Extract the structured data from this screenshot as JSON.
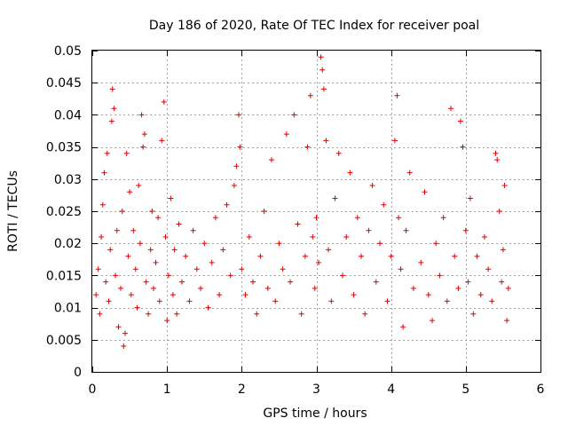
{
  "chart_data": {
    "type": "scatter",
    "title": "Day 186 of 2020, Rate Of TEC Index for receiver poal",
    "xlabel": "GPS time / hours",
    "ylabel": "ROTI / TECUs",
    "xlim": [
      0,
      6
    ],
    "ylim": [
      0,
      0.05
    ],
    "x_ticks": [
      0,
      1,
      2,
      3,
      4,
      5,
      6
    ],
    "x_tick_labels": [
      "0",
      "1",
      "2",
      "3",
      "4",
      "5",
      "6"
    ],
    "y_ticks": [
      0,
      0.005,
      0.01,
      0.015,
      0.02,
      0.025,
      0.03,
      0.035,
      0.04,
      0.045,
      0.05
    ],
    "y_tick_labels": [
      "0",
      "0.005",
      "0.01",
      "0.015",
      "0.02",
      "0.025",
      "0.03",
      "0.035",
      "0.04",
      "0.045",
      "0.05"
    ],
    "grid": true,
    "marker": "+",
    "marker_color": "#e00000",
    "series": [
      {
        "name": "ROTI",
        "points": [
          [
            0.05,
            0.012
          ],
          [
            0.08,
            0.016
          ],
          [
            0.1,
            0.009
          ],
          [
            0.12,
            0.021
          ],
          [
            0.14,
            0.026
          ],
          [
            0.16,
            0.031
          ],
          [
            0.18,
            0.014
          ],
          [
            0.2,
            0.034
          ],
          [
            0.22,
            0.011
          ],
          [
            0.24,
            0.019
          ],
          [
            0.26,
            0.039
          ],
          [
            0.27,
            0.044
          ],
          [
            0.29,
            0.041
          ],
          [
            0.31,
            0.015
          ],
          [
            0.33,
            0.022
          ],
          [
            0.35,
            0.007
          ],
          [
            0.38,
            0.013
          ],
          [
            0.4,
            0.025
          ],
          [
            0.42,
            0.004
          ],
          [
            0.44,
            0.006
          ],
          [
            0.46,
            0.034
          ],
          [
            0.48,
            0.018
          ],
          [
            0.5,
            0.028
          ],
          [
            0.52,
            0.012
          ],
          [
            0.55,
            0.022
          ],
          [
            0.58,
            0.016
          ],
          [
            0.6,
            0.01
          ],
          [
            0.62,
            0.029
          ],
          [
            0.64,
            0.02
          ],
          [
            0.66,
            0.04
          ],
          [
            0.68,
            0.035
          ],
          [
            0.7,
            0.037
          ],
          [
            0.72,
            0.014
          ],
          [
            0.75,
            0.009
          ],
          [
            0.78,
            0.019
          ],
          [
            0.8,
            0.025
          ],
          [
            0.82,
            0.013
          ],
          [
            0.85,
            0.017
          ],
          [
            0.88,
            0.024
          ],
          [
            0.9,
            0.011
          ],
          [
            0.93,
            0.036
          ],
          [
            0.96,
            0.042
          ],
          [
            0.98,
            0.021
          ],
          [
            1.0,
            0.008
          ],
          [
            1.02,
            0.015
          ],
          [
            1.05,
            0.027
          ],
          [
            1.08,
            0.012
          ],
          [
            1.1,
            0.019
          ],
          [
            1.13,
            0.009
          ],
          [
            1.16,
            0.023
          ],
          [
            1.2,
            0.014
          ],
          [
            1.25,
            0.018
          ],
          [
            1.3,
            0.011
          ],
          [
            1.35,
            0.022
          ],
          [
            1.4,
            0.016
          ],
          [
            1.45,
            0.013
          ],
          [
            1.5,
            0.02
          ],
          [
            1.55,
            0.01
          ],
          [
            1.6,
            0.017
          ],
          [
            1.65,
            0.024
          ],
          [
            1.7,
            0.012
          ],
          [
            1.75,
            0.019
          ],
          [
            1.8,
            0.026
          ],
          [
            1.85,
            0.015
          ],
          [
            1.9,
            0.029
          ],
          [
            1.93,
            0.032
          ],
          [
            1.96,
            0.04
          ],
          [
            1.98,
            0.035
          ],
          [
            2.0,
            0.016
          ],
          [
            2.05,
            0.012
          ],
          [
            2.1,
            0.021
          ],
          [
            2.15,
            0.014
          ],
          [
            2.2,
            0.009
          ],
          [
            2.25,
            0.018
          ],
          [
            2.3,
            0.025
          ],
          [
            2.35,
            0.013
          ],
          [
            2.4,
            0.033
          ],
          [
            2.45,
            0.011
          ],
          [
            2.5,
            0.02
          ],
          [
            2.55,
            0.016
          ],
          [
            2.6,
            0.037
          ],
          [
            2.65,
            0.014
          ],
          [
            2.7,
            0.04
          ],
          [
            2.75,
            0.023
          ],
          [
            2.8,
            0.009
          ],
          [
            2.85,
            0.018
          ],
          [
            2.88,
            0.035
          ],
          [
            2.92,
            0.043
          ],
          [
            2.95,
            0.021
          ],
          [
            2.98,
            0.013
          ],
          [
            3.0,
            0.024
          ],
          [
            3.03,
            0.017
          ],
          [
            3.06,
            0.049
          ],
          [
            3.08,
            0.047
          ],
          [
            3.1,
            0.044
          ],
          [
            3.13,
            0.036
          ],
          [
            3.16,
            0.019
          ],
          [
            3.2,
            0.011
          ],
          [
            3.25,
            0.027
          ],
          [
            3.3,
            0.034
          ],
          [
            3.35,
            0.015
          ],
          [
            3.4,
            0.021
          ],
          [
            3.45,
            0.031
          ],
          [
            3.5,
            0.012
          ],
          [
            3.55,
            0.024
          ],
          [
            3.6,
            0.018
          ],
          [
            3.65,
            0.009
          ],
          [
            3.7,
            0.022
          ],
          [
            3.75,
            0.029
          ],
          [
            3.8,
            0.014
          ],
          [
            3.85,
            0.02
          ],
          [
            3.9,
            0.026
          ],
          [
            3.95,
            0.011
          ],
          [
            4.0,
            0.018
          ],
          [
            4.05,
            0.036
          ],
          [
            4.08,
            0.043
          ],
          [
            4.1,
            0.024
          ],
          [
            4.13,
            0.016
          ],
          [
            4.16,
            0.007
          ],
          [
            4.2,
            0.022
          ],
          [
            4.25,
            0.031
          ],
          [
            4.3,
            0.013
          ],
          [
            4.4,
            0.017
          ],
          [
            4.45,
            0.028
          ],
          [
            4.5,
            0.012
          ],
          [
            4.55,
            0.008
          ],
          [
            4.6,
            0.02
          ],
          [
            4.65,
            0.015
          ],
          [
            4.7,
            0.024
          ],
          [
            4.75,
            0.011
          ],
          [
            4.8,
            0.041
          ],
          [
            4.85,
            0.018
          ],
          [
            4.9,
            0.013
          ],
          [
            4.93,
            0.039
          ],
          [
            4.96,
            0.035
          ],
          [
            5.0,
            0.022
          ],
          [
            5.03,
            0.014
          ],
          [
            5.06,
            0.027
          ],
          [
            5.1,
            0.009
          ],
          [
            5.15,
            0.018
          ],
          [
            5.2,
            0.012
          ],
          [
            5.25,
            0.021
          ],
          [
            5.3,
            0.016
          ],
          [
            5.35,
            0.011
          ],
          [
            5.4,
            0.034
          ],
          [
            5.42,
            0.033
          ],
          [
            5.45,
            0.025
          ],
          [
            5.48,
            0.014
          ],
          [
            5.5,
            0.019
          ],
          [
            5.52,
            0.029
          ],
          [
            5.55,
            0.008
          ],
          [
            5.57,
            0.013
          ]
        ]
      }
    ]
  }
}
